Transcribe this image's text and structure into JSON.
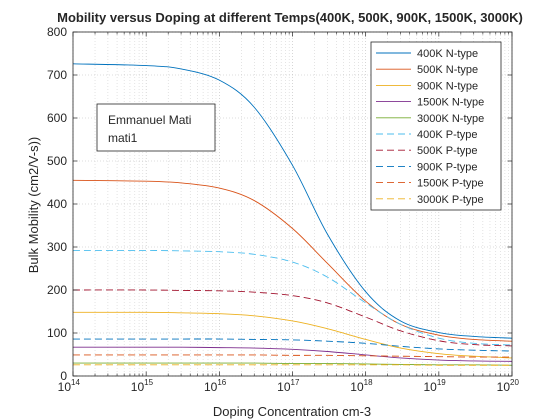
{
  "chart_data": {
    "type": "line",
    "title": "Mobility versus Doping at different Temps(400K, 500K, 900K, 1500K, 3000K)",
    "xlabel": "Doping Concentration cm-3",
    "ylabel": "Bulk Mobility (cm2/V-s))",
    "x_scale": "log",
    "xlim": [
      100000000000000.0,
      1e+20
    ],
    "ylim": [
      0,
      800
    ],
    "x_ticks": [
      {
        "base": "10",
        "exp": "14",
        "value": 100000000000000.0
      },
      {
        "base": "10",
        "exp": "15",
        "value": 1000000000000000.0
      },
      {
        "base": "10",
        "exp": "16",
        "value": 1e+16
      },
      {
        "base": "10",
        "exp": "17",
        "value": 1e+17
      },
      {
        "base": "10",
        "exp": "18",
        "value": 1e+18
      },
      {
        "base": "10",
        "exp": "19",
        "value": 1e+19
      },
      {
        "base": "10",
        "exp": "20",
        "value": 1e+20
      }
    ],
    "y_ticks": [
      "0",
      "100",
      "200",
      "300",
      "400",
      "500",
      "600",
      "700",
      "800"
    ],
    "grid": true,
    "legend_position": "top-right",
    "x": [
      100000000000000.0,
      1000000000000000.0,
      3000000000000000.0,
      1e+16,
      3e+16,
      1e+17,
      3e+17,
      1e+18,
      3e+18,
      1e+19,
      3e+19,
      1e+20
    ],
    "series": [
      {
        "name": "400K N-type",
        "color": "#0072BD",
        "dash": "solid",
        "values": [
          726,
          722,
          714,
          688,
          625,
          490,
          330,
          196,
          128,
          101,
          92,
          88
        ]
      },
      {
        "name": "500K N-type",
        "color": "#D95319",
        "dash": "solid",
        "values": [
          455,
          453,
          449,
          437,
          408,
          343,
          262,
          174,
          120,
          95,
          85,
          81
        ]
      },
      {
        "name": "900K N-type",
        "color": "#EDB120",
        "dash": "solid",
        "values": [
          148,
          148,
          147,
          145,
          140,
          128,
          110,
          85,
          65,
          52,
          46,
          42
        ]
      },
      {
        "name": "1500K N-type",
        "color": "#7E2F8E",
        "dash": "solid",
        "values": [
          67,
          67,
          67,
          66,
          65,
          62,
          57,
          49,
          42,
          37,
          35,
          34
        ]
      },
      {
        "name": "3000K N-type",
        "color": "#77AC30",
        "dash": "solid",
        "values": [
          30,
          30,
          30,
          30,
          30,
          29,
          29,
          28,
          27,
          26,
          26,
          25
        ]
      },
      {
        "name": "400K P-type",
        "color": "#4DBEEE",
        "dash": "dashed",
        "values": [
          292,
          292,
          291,
          289,
          283,
          265,
          230,
          170,
          120,
          88,
          76,
          72
        ]
      },
      {
        "name": "500K P-type",
        "color": "#A2142F",
        "dash": "dashed",
        "values": [
          200,
          200,
          199,
          198,
          195,
          187,
          170,
          137,
          105,
          82,
          73,
          70
        ]
      },
      {
        "name": "900K P-type",
        "color": "#0072BD",
        "dash": "dashed",
        "values": [
          86,
          86,
          86,
          86,
          85,
          84,
          81,
          76,
          69,
          63,
          60,
          58
        ]
      },
      {
        "name": "1500K P-type",
        "color": "#D95319",
        "dash": "dashed",
        "values": [
          49,
          49,
          49,
          49,
          49,
          48,
          48,
          47,
          46,
          45,
          44,
          44
        ]
      },
      {
        "name": "3000K P-type",
        "color": "#EDB120",
        "dash": "dashed",
        "values": [
          26,
          26,
          26,
          26,
          26,
          26,
          26,
          26,
          26,
          25,
          25,
          25
        ]
      }
    ],
    "annotation": {
      "lines": [
        "Emmanuel Mati",
        "mati1"
      ]
    }
  }
}
